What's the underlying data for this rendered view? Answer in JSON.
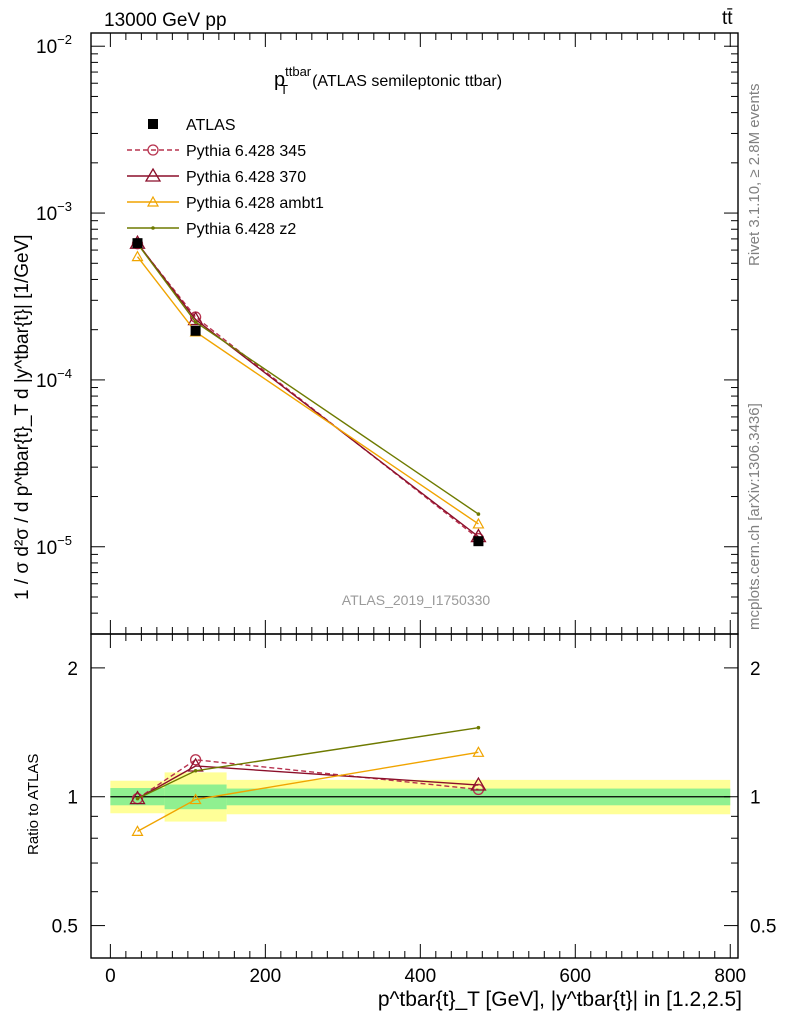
{
  "header": {
    "left": "13000 GeV pp",
    "right": "tt̄"
  },
  "side_labels": {
    "rivet": "Rivet 3.1.10, ≥ 2.8M events",
    "mcplots": "mcplots.cern.ch [arXiv:1306.3436]"
  },
  "chart_data": [
    {
      "type": "line",
      "title_main": "p",
      "title_sup": "ttbar",
      "title_sub": "T",
      "title_rest": "(ATLAS semileptonic ttbar)",
      "watermark": "ATLAS_2019_I1750330",
      "ylabel": "1 / σ d²σ / d p^tbar{t}_T d |y^tbar{t}| [1/GeV]",
      "yscale": "log",
      "ylim": [
        3e-06,
        0.012
      ],
      "xlim": [
        -25,
        810
      ],
      "y_ticks": [
        "10⁻⁵",
        "10⁻⁴",
        "10⁻³",
        "10⁻²"
      ],
      "legend_position": "top-left",
      "x": [
        35,
        110,
        475
      ],
      "data": {
        "name": "ATLAS",
        "values": [
          0.00066,
          0.000197,
          1.08e-05
        ],
        "color": "#000000"
      },
      "series": [
        {
          "name": "Pythia 6.428 345",
          "values": [
            0.000655,
            0.000238,
            1.12e-05
          ],
          "color": "#b7334f",
          "style": "dashed",
          "marker": "circle"
        },
        {
          "name": "Pythia 6.428 370",
          "values": [
            0.00066,
            0.00023,
            1.15e-05
          ],
          "color": "#8b0f2a",
          "style": "solid",
          "marker": "triangle"
        },
        {
          "name": "Pythia 6.428 ambt1",
          "values": [
            0.000548,
            0.000194,
            1.37e-05
          ],
          "color": "#f0a400",
          "style": "solid",
          "marker": "triangle-small"
        },
        {
          "name": "Pythia 6.428 z2",
          "values": [
            0.000655,
            0.000222,
            1.57e-05
          ],
          "color": "#6e7a00",
          "style": "solid",
          "marker": "dot"
        }
      ]
    },
    {
      "type": "line",
      "ylabel": "Ratio to ATLAS",
      "yscale": "log",
      "ylim": [
        0.42,
        2.4
      ],
      "xlim": [
        -25,
        810
      ],
      "y_ticks": [
        "0.5",
        "1",
        "2"
      ],
      "x_ticks": [
        "0",
        "200",
        "400",
        "600",
        "800"
      ],
      "xlabel": "p^tbar{t}_T [GeV], |y^tbar{t}| in [1.2,2.5]",
      "bands": [
        {
          "x0": 0,
          "x1": 70,
          "inner": [
            0.955,
            1.048
          ],
          "outer": [
            0.915,
            1.09
          ]
        },
        {
          "x0": 70,
          "x1": 150,
          "inner": [
            0.935,
            1.068
          ],
          "outer": [
            0.875,
            1.14
          ]
        },
        {
          "x0": 150,
          "x1": 800,
          "inner": [
            0.955,
            1.045
          ],
          "outer": [
            0.91,
            1.095
          ]
        }
      ],
      "band_colors": {
        "inner": "#90f090",
        "outer": "#ffff98"
      },
      "x": [
        35,
        110,
        475
      ],
      "series": [
        {
          "name": "Pythia 6.428 345",
          "values": [
            0.99,
            1.22,
            1.04
          ]
        },
        {
          "name": "Pythia 6.428 370",
          "values": [
            0.99,
            1.18,
            1.065
          ]
        },
        {
          "name": "Pythia 6.428 ambt1",
          "values": [
            0.83,
            0.985,
            1.27
          ]
        },
        {
          "name": "Pythia 6.428 z2",
          "values": [
            0.99,
            1.15,
            1.45
          ]
        }
      ]
    }
  ]
}
